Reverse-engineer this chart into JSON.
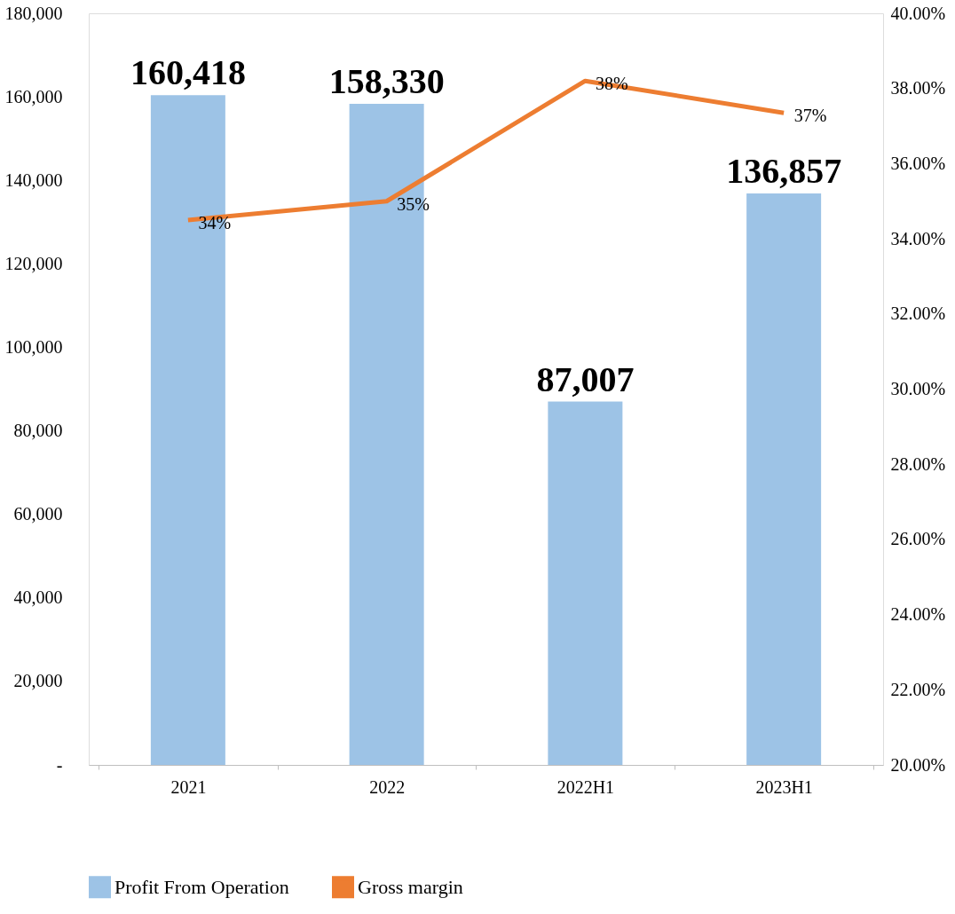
{
  "chart_data": {
    "type": "bar",
    "categories": [
      "2021",
      "2022",
      "2022H1",
      "2023H1"
    ],
    "series": [
      {
        "name": "Profit From Operation",
        "color": "#9dc3e6",
        "values": [
          160418,
          158330,
          87007,
          136857
        ],
        "value_labels": [
          "160,418",
          "158,330",
          "87,007",
          "136,857"
        ]
      },
      {
        "name": "Gross margin",
        "type": "line",
        "axis": "y2",
        "color": "#ed7d31",
        "values": [
          34.5,
          35.0,
          38.2,
          37.35
        ],
        "value_labels": [
          "34%",
          "35%",
          "38%",
          "37%"
        ]
      }
    ],
    "ylim": [
      0,
      180000
    ],
    "yticks": [
      {
        "value": 0,
        "label": "-"
      },
      {
        "value": 20000,
        "label": "20,000"
      },
      {
        "value": 40000,
        "label": "40,000"
      },
      {
        "value": 60000,
        "label": "60,000"
      },
      {
        "value": 80000,
        "label": "80,000"
      },
      {
        "value": 100000,
        "label": "100,000"
      },
      {
        "value": 120000,
        "label": "120,000"
      },
      {
        "value": 140000,
        "label": "140,000"
      },
      {
        "value": 160000,
        "label": "160,000"
      },
      {
        "value": 180000,
        "label": "180,000"
      }
    ],
    "y2lim": [
      20,
      40
    ],
    "y2ticks": [
      {
        "value": 20,
        "label": "20.00%"
      },
      {
        "value": 22,
        "label": "22.00%"
      },
      {
        "value": 24,
        "label": "24.00%"
      },
      {
        "value": 26,
        "label": "26.00%"
      },
      {
        "value": 28,
        "label": "28.00%"
      },
      {
        "value": 30,
        "label": "30.00%"
      },
      {
        "value": 32,
        "label": "32.00%"
      },
      {
        "value": 34,
        "label": "34.00%"
      },
      {
        "value": 36,
        "label": "36.00%"
      },
      {
        "value": 38,
        "label": "38.00%"
      },
      {
        "value": 40,
        "label": "40.00%"
      }
    ],
    "grid": false,
    "legend": "bottom",
    "marker": "none",
    "line_style": "solid"
  }
}
